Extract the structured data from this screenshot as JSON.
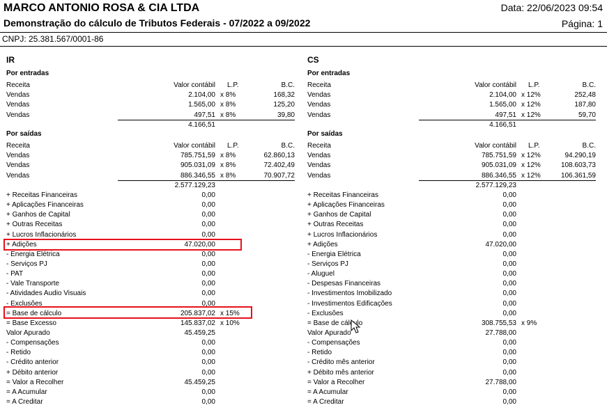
{
  "header": {
    "company": "MARCO ANTONIO ROSA & CIA LTDA",
    "title": "Demonstração do cálculo de Tributos Federais - 07/2022 a 09/2022",
    "date": "Data: 22/06/2023 09:54",
    "page": "Página: 1",
    "cnpj": "CNPJ: 25.381.567/0001-86"
  },
  "col_headers": {
    "receita": "Receita",
    "valor": "Valor contábil",
    "lp": "L.P.",
    "bc": "B.C."
  },
  "ir": {
    "title": "IR",
    "entradas_title": "Por entradas",
    "entradas": [
      {
        "name": "Vendas",
        "valor": "2.104,00",
        "lp": "x 8%",
        "bc": "168,32"
      },
      {
        "name": "Vendas",
        "valor": "1.565,00",
        "lp": "x 8%",
        "bc": "125,20"
      },
      {
        "name": "Vendas",
        "valor": "497,51",
        "lp": "x 8%",
        "bc": "39,80"
      }
    ],
    "entradas_total": "4.166,51",
    "saidas_title": "Por saídas",
    "saidas": [
      {
        "name": "Vendas",
        "valor": "785.751,59",
        "lp": "x 8%",
        "bc": "62.860,13"
      },
      {
        "name": "Vendas",
        "valor": "905.031,09",
        "lp": "x 8%",
        "bc": "72.402,49"
      },
      {
        "name": "Vendas",
        "valor": "886.346,55",
        "lp": "x 8%",
        "bc": "70.907,72"
      }
    ],
    "saidas_total": "2.577.129,23",
    "items": [
      {
        "name": "+  Receitas Financeiras",
        "valor": "0,00",
        "lp": ""
      },
      {
        "name": "+  Aplicações Financeiras",
        "valor": "0,00",
        "lp": ""
      },
      {
        "name": "+  Ganhos de Capital",
        "valor": "0,00",
        "lp": ""
      },
      {
        "name": "+  Outras Receitas",
        "valor": "0,00",
        "lp": ""
      },
      {
        "name": "+  Lucros Inflacionários",
        "valor": "0,00",
        "lp": ""
      },
      {
        "name": "+  Adições",
        "valor": "47.020,00",
        "lp": ""
      },
      {
        "name": "-  Energia Elétrica",
        "valor": "0,00",
        "lp": ""
      },
      {
        "name": "-  Serviços PJ",
        "valor": "0,00",
        "lp": ""
      },
      {
        "name": "-  PAT",
        "valor": "0,00",
        "lp": ""
      },
      {
        "name": "-  Vale Transporte",
        "valor": "0,00",
        "lp": ""
      },
      {
        "name": "-  Atividades Audio Visuais",
        "valor": "0,00",
        "lp": ""
      },
      {
        "name": "-  Exclusões",
        "valor": "0,00",
        "lp": ""
      },
      {
        "name": "=  Base de cálculo",
        "valor": "205.837,02",
        "lp": "x 15%"
      },
      {
        "name": "=  Base Excesso",
        "valor": "145.837,02",
        "lp": "x 10%"
      },
      {
        "name": "Valor Apurado",
        "valor": "45.459,25",
        "lp": ""
      },
      {
        "name": "-  Compensações",
        "valor": "0,00",
        "lp": ""
      },
      {
        "name": "-  Retido",
        "valor": "0,00",
        "lp": ""
      },
      {
        "name": "-  Crédito anterior",
        "valor": "0,00",
        "lp": ""
      },
      {
        "name": "+  Débito anterior",
        "valor": "0,00",
        "lp": ""
      },
      {
        "name": "=  Valor a Recolher",
        "valor": "45.459,25",
        "lp": ""
      },
      {
        "name": "=  A Acumular",
        "valor": "0,00",
        "lp": ""
      },
      {
        "name": "=  A Creditar",
        "valor": "0,00",
        "lp": ""
      }
    ]
  },
  "cs": {
    "title": "CS",
    "entradas_title": "Por entradas",
    "entradas": [
      {
        "name": "Vendas",
        "valor": "2.104,00",
        "lp": "x 12%",
        "bc": "252,48"
      },
      {
        "name": "Vendas",
        "valor": "1.565,00",
        "lp": "x 12%",
        "bc": "187,80"
      },
      {
        "name": "Vendas",
        "valor": "497,51",
        "lp": "x 12%",
        "bc": "59,70"
      }
    ],
    "entradas_total": "4.166,51",
    "saidas_title": "Por saídas",
    "saidas": [
      {
        "name": "Vendas",
        "valor": "785.751,59",
        "lp": "x 12%",
        "bc": "94.290,19"
      },
      {
        "name": "Vendas",
        "valor": "905.031,09",
        "lp": "x 12%",
        "bc": "108.603,73"
      },
      {
        "name": "Vendas",
        "valor": "886.346,55",
        "lp": "x 12%",
        "bc": "106.361,59"
      }
    ],
    "saidas_total": "2.577.129,23",
    "items": [
      {
        "name": "+  Receitas Financeiras",
        "valor": "0,00",
        "lp": ""
      },
      {
        "name": "+  Aplicações Financeiras",
        "valor": "0,00",
        "lp": ""
      },
      {
        "name": "+  Ganhos de Capital",
        "valor": "0,00",
        "lp": ""
      },
      {
        "name": "+  Outras Receitas",
        "valor": "0,00",
        "lp": ""
      },
      {
        "name": "+  Lucros Inflacionários",
        "valor": "0,00",
        "lp": ""
      },
      {
        "name": "+  Adições",
        "valor": "47.020,00",
        "lp": ""
      },
      {
        "name": "-  Energia Elétrica",
        "valor": "0,00",
        "lp": ""
      },
      {
        "name": "-  Serviços PJ",
        "valor": "0,00",
        "lp": ""
      },
      {
        "name": "-  Aluguel",
        "valor": "0,00",
        "lp": ""
      },
      {
        "name": "-  Despesas Financeiras",
        "valor": "0,00",
        "lp": ""
      },
      {
        "name": "-  Investimentos Imobilizado",
        "valor": "0,00",
        "lp": ""
      },
      {
        "name": "-  Investimentos Edificações",
        "valor": "0,00",
        "lp": ""
      },
      {
        "name": "-  Exclusões",
        "valor": "0,00",
        "lp": ""
      },
      {
        "name": "=  Base de cálculo",
        "valor": "308.755,53",
        "lp": "x 9%"
      },
      {
        "name": "Valor Apurado",
        "valor": "27.788,00",
        "lp": ""
      },
      {
        "name": "-  Compensações",
        "valor": "0,00",
        "lp": ""
      },
      {
        "name": "-  Retido",
        "valor": "0,00",
        "lp": ""
      },
      {
        "name": "-  Crédito mês anterior",
        "valor": "0,00",
        "lp": ""
      },
      {
        "name": "+  Débito mês anterior",
        "valor": "0,00",
        "lp": ""
      },
      {
        "name": "=  Valor a Recolher",
        "valor": "27.788,00",
        "lp": ""
      },
      {
        "name": "=  A Acumular",
        "valor": "0,00",
        "lp": ""
      },
      {
        "name": "=  A Creditar",
        "valor": "0,00",
        "lp": ""
      }
    ]
  },
  "highlight_color": "#e8101a"
}
